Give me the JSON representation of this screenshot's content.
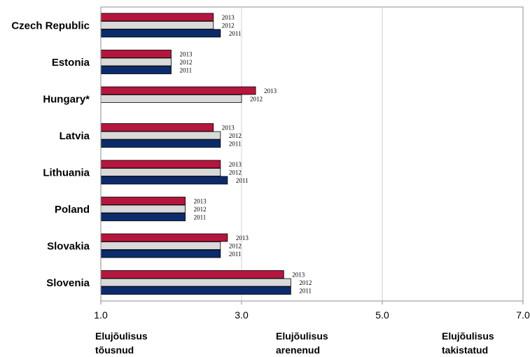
{
  "chart_data": {
    "type": "bar",
    "orientation": "horizontal",
    "categories": [
      "Czech Republic",
      "Estonia",
      "Hungary*",
      "Latvia",
      "Lithuania",
      "Poland",
      "Slovakia",
      "Slovenia"
    ],
    "series": [
      {
        "name": "2013",
        "color": "#b5163d",
        "values": [
          2.6,
          2.0,
          3.2,
          2.6,
          2.7,
          2.2,
          2.8,
          3.6
        ]
      },
      {
        "name": "2012",
        "color": "#d9d9d9",
        "values": [
          2.6,
          2.0,
          3.0,
          2.7,
          2.7,
          2.2,
          2.7,
          3.7
        ]
      },
      {
        "name": "2011",
        "color": "#0c2b6b",
        "values": [
          2.7,
          2.0,
          null,
          2.7,
          2.8,
          2.2,
          2.7,
          3.7
        ]
      }
    ],
    "xlim": [
      1.0,
      7.0
    ],
    "xticks": [
      "1.0",
      "3.0",
      "5.0",
      "7.0"
    ],
    "grid": true,
    "bottom_labels": [
      {
        "line1": "Elujõulisus",
        "line2": "tõusnud"
      },
      {
        "line1": "Elujõulisus",
        "line2": "arenenud"
      },
      {
        "line1": "Elujõulisus",
        "line2": "takistatud"
      }
    ]
  }
}
